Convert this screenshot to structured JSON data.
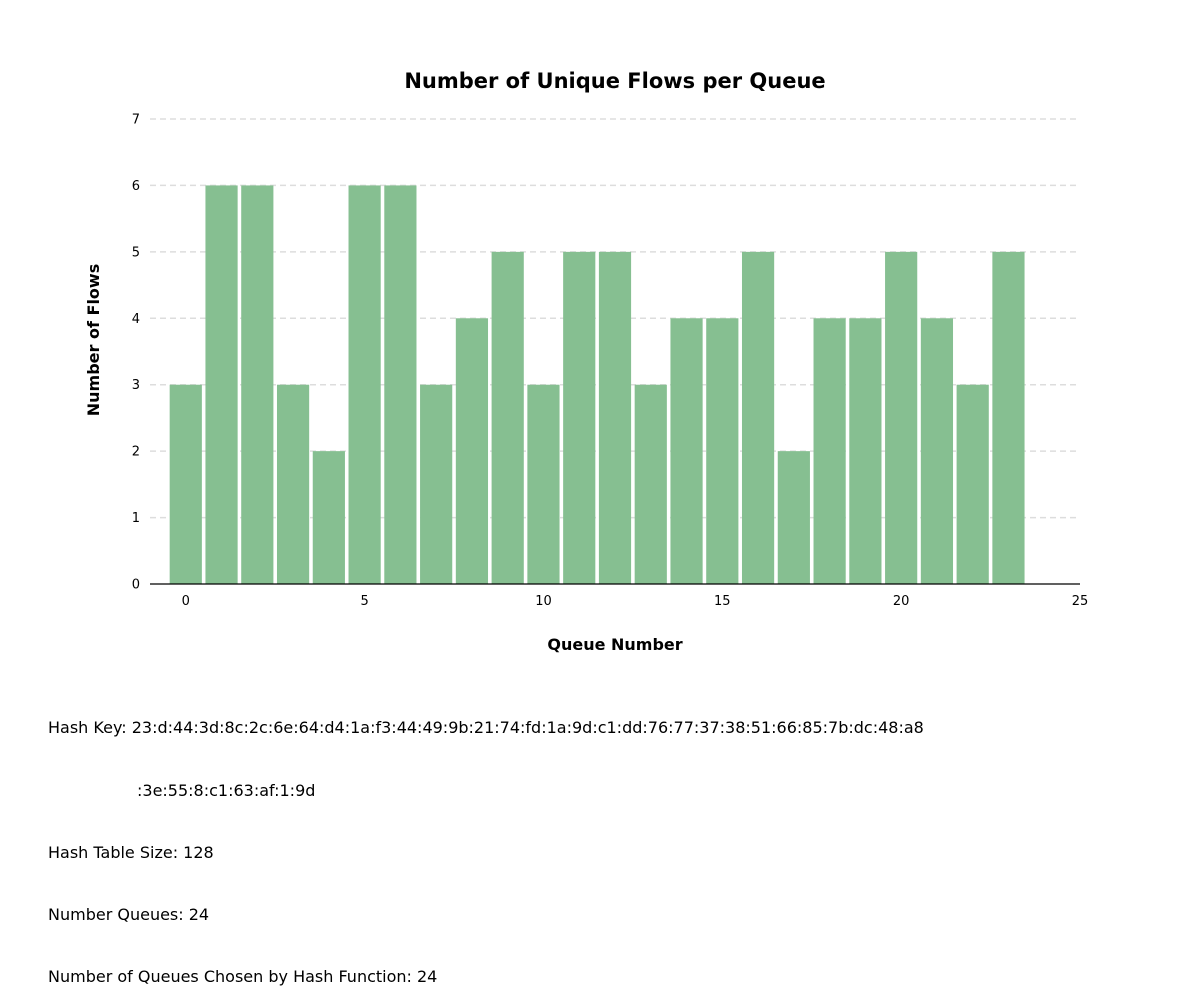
{
  "chart_data": {
    "type": "bar",
    "title": "Number of Unique Flows per Queue",
    "xlabel": "Queue Number",
    "ylabel": "Number of Flows",
    "x": [
      0,
      1,
      2,
      3,
      4,
      5,
      6,
      7,
      8,
      9,
      10,
      11,
      12,
      13,
      14,
      15,
      16,
      17,
      18,
      19,
      20,
      21,
      22,
      23
    ],
    "values": [
      3,
      6,
      6,
      3,
      2,
      6,
      6,
      3,
      4,
      5,
      3,
      5,
      5,
      3,
      4,
      4,
      5,
      2,
      4,
      4,
      5,
      4,
      3,
      5
    ],
    "xlim": [
      -1,
      25
    ],
    "ylim": [
      0,
      7
    ],
    "xticks": [
      0,
      5,
      10,
      15,
      20,
      25
    ],
    "yticks": [
      0,
      1,
      2,
      3,
      4,
      5,
      6,
      7
    ],
    "grid": "horizontal dashed",
    "bar_color": "#86bf91"
  },
  "info": {
    "hash_key_label": "Hash Key: ",
    "hash_key_line1": "23:d:44:3d:8c:2c:6e:64:d4:1a:f3:44:49:9b:21:74:fd:1a:9d:c1:dd:76:77:37:38:51:66:85:7b:dc:48:a8",
    "hash_key_line2": ":3e:55:8:c1:63:af:1:9d",
    "hash_table_size": "Hash Table Size: 128",
    "number_queues": "Number Queues: 24",
    "queues_chosen": "Number of Queues Chosen by Hash Function: 24"
  }
}
